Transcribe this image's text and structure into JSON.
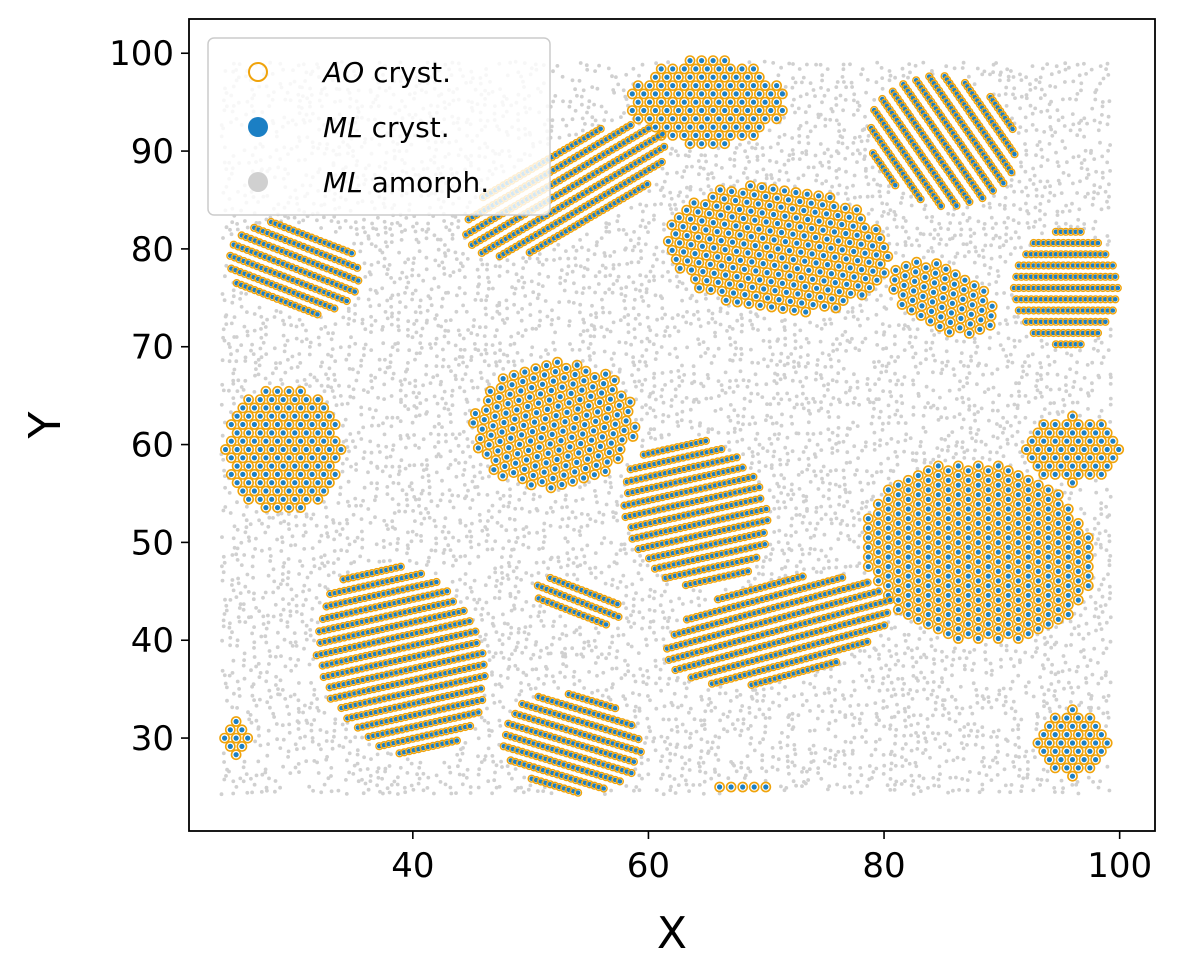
{
  "chart_data": {
    "type": "scatter",
    "title": "",
    "xlabel": "X",
    "ylabel": "Y",
    "xlim": [
      21,
      103
    ],
    "ylim": [
      20.5,
      103.5
    ],
    "xticks": [
      40,
      60,
      80,
      100
    ],
    "yticks": [
      30,
      40,
      50,
      60,
      70,
      80,
      90,
      100
    ],
    "grid": false,
    "legend_position": "top-left",
    "legend": [
      {
        "series": "AO cryst.",
        "italic": "AO",
        "rest": " cryst.",
        "marker": "open-circle",
        "color": "#f0a30a"
      },
      {
        "series": "ML cryst.",
        "italic": "ML",
        "rest": " cryst.",
        "marker": "filled-circle",
        "color": "#1b7fc4"
      },
      {
        "series": "ML amorph.",
        "italic": "ML",
        "rest": " amorph.",
        "marker": "filled-circle",
        "color": "#d0d0d0"
      }
    ],
    "domain": {
      "x": [
        24,
        99.5
      ],
      "y": [
        24.5,
        99.5
      ]
    },
    "crystal_regions": [
      {
        "cx": 65,
        "cy": 95,
        "rx": 6.5,
        "ry": 4.5,
        "angle": 0,
        "pattern": "hex"
      },
      {
        "cx": 85,
        "cy": 91,
        "rx": 7,
        "ry": 6,
        "angle": -60,
        "pattern": "stripe"
      },
      {
        "cx": 53,
        "cy": 86,
        "rx": 10,
        "ry": 4.5,
        "angle": 35,
        "pattern": "stripe"
      },
      {
        "cx": 71,
        "cy": 80,
        "rx": 9.5,
        "ry": 6.5,
        "angle": -10,
        "pattern": "hex"
      },
      {
        "cx": 85,
        "cy": 75,
        "rx": 5.5,
        "ry": 3.2,
        "angle": -35,
        "pattern": "hex"
      },
      {
        "cx": 30,
        "cy": 78,
        "rx": 6,
        "ry": 4.5,
        "angle": -25,
        "pattern": "stripe"
      },
      {
        "cx": 95.5,
        "cy": 76,
        "rx": 4.5,
        "ry": 6,
        "angle": 0,
        "pattern": "stripe"
      },
      {
        "cx": 52,
        "cy": 62,
        "rx": 7,
        "ry": 6.5,
        "angle": 20,
        "pattern": "hex"
      },
      {
        "cx": 29,
        "cy": 59.5,
        "rx": 5,
        "ry": 6.5,
        "angle": 0,
        "pattern": "hex"
      },
      {
        "cx": 64,
        "cy": 53,
        "rx": 6,
        "ry": 8,
        "angle": 15,
        "pattern": "stripe"
      },
      {
        "cx": 96,
        "cy": 59.5,
        "rx": 4,
        "ry": 3.5,
        "angle": 0,
        "pattern": "hex"
      },
      {
        "cx": 88,
        "cy": 49,
        "rx": 10,
        "ry": 9,
        "angle": -30,
        "pattern": "hex"
      },
      {
        "cx": 71,
        "cy": 41,
        "rx": 10,
        "ry": 5,
        "angle": 18,
        "pattern": "stripe"
      },
      {
        "cx": 39,
        "cy": 38,
        "rx": 7,
        "ry": 10,
        "angle": 15,
        "pattern": "stripe"
      },
      {
        "cx": 54,
        "cy": 44,
        "rx": 4,
        "ry": 2,
        "angle": -25,
        "pattern": "stripe"
      },
      {
        "cx": 53.5,
        "cy": 29.5,
        "rx": 6,
        "ry": 5,
        "angle": -20,
        "pattern": "stripe"
      },
      {
        "cx": 96,
        "cy": 29.5,
        "rx": 3.2,
        "ry": 3.5,
        "angle": 0,
        "pattern": "hex"
      },
      {
        "cx": 25,
        "cy": 30,
        "rx": 1.3,
        "ry": 2.5,
        "angle": 0,
        "pattern": "hex"
      },
      {
        "cx": 68,
        "cy": 25,
        "rx": 2.5,
        "ry": 0.8,
        "angle": 0,
        "pattern": "hex"
      }
    ]
  }
}
